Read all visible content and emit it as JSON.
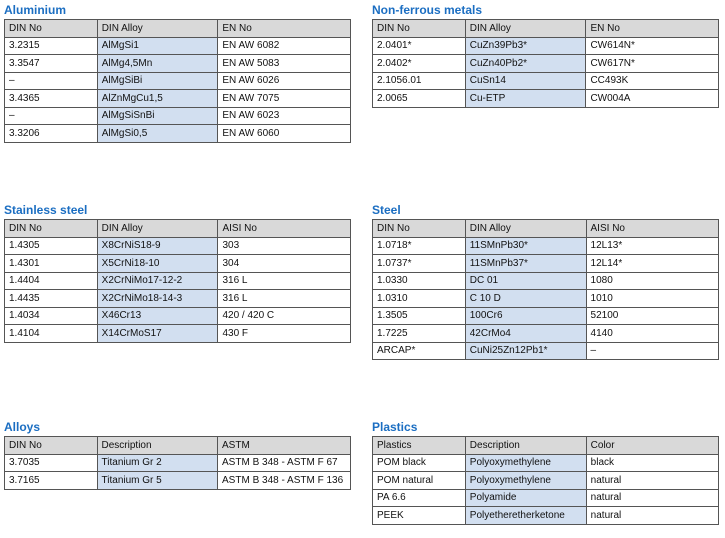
{
  "sections": [
    {
      "title": "Aluminium",
      "headers": [
        "DIN No",
        "DIN Alloy",
        "EN No"
      ],
      "rows": [
        [
          "3.2315",
          "AlMgSi1",
          "EN AW 6082"
        ],
        [
          "3.3547",
          "AlMg4,5Mn",
          "EN AW 5083"
        ],
        [
          "–",
          "AlMgSiBi",
          "EN AW 6026"
        ],
        [
          "3.4365",
          "AlZnMgCu1,5",
          "EN AW 7075"
        ],
        [
          "–",
          "AlMgSiSnBi",
          "EN AW 6023"
        ],
        [
          "3.3206",
          "AlMgSi0,5",
          "EN AW 6060"
        ]
      ]
    },
    {
      "title": "Non-ferrous metals",
      "headers": [
        "DIN No",
        "DIN Alloy",
        "EN No"
      ],
      "rows": [
        [
          "2.0401*",
          "CuZn39Pb3*",
          "CW614N*"
        ],
        [
          "2.0402*",
          "CuZn40Pb2*",
          "CW617N*"
        ],
        [
          "2.1056.01",
          "CuSn14",
          "CC493K"
        ],
        [
          "2.0065",
          "Cu-ETP",
          "CW004A"
        ]
      ]
    },
    {
      "title": "Stainless steel",
      "headers": [
        "DIN No",
        "DIN Alloy",
        "AISI No"
      ],
      "rows": [
        [
          "1.4305",
          "X8CrNiS18-9",
          "303"
        ],
        [
          "1.4301",
          "X5CrNi18-10",
          "304"
        ],
        [
          "1.4404",
          "X2CrNiMo17-12-2",
          " 316 L"
        ],
        [
          "1.4435",
          "X2CrNiMo18-14-3",
          " 316 L"
        ],
        [
          "1.4034",
          "X46Cr13",
          "420 / 420 C"
        ],
        [
          "1.4104",
          "X14CrMoS17",
          " 430 F"
        ]
      ]
    },
    {
      "title": "Steel",
      "headers": [
        "DIN No",
        "DIN Alloy",
        "AISI No"
      ],
      "rows": [
        [
          "1.0718*",
          "11SMnPb30*",
          "12L13*"
        ],
        [
          "1.0737*",
          "11SMnPb37*",
          "12L14*"
        ],
        [
          "1.0330",
          "DC 01",
          "1080"
        ],
        [
          "1.0310",
          "C 10 D",
          "1010"
        ],
        [
          "1.3505",
          "100Cr6",
          "52100"
        ],
        [
          "1.7225",
          "42CrMo4",
          "4140"
        ],
        [
          "ARCAP*",
          "CuNi25Zn12Pb1*",
          "–"
        ]
      ]
    },
    {
      "title": "Alloys",
      "headers": [
        "DIN No",
        "Description",
        "ASTM"
      ],
      "rows": [
        [
          "3.7035",
          "Titanium Gr 2",
          "ASTM B 348 - ASTM F 67"
        ],
        [
          "3.7165",
          "Titanium Gr 5",
          "ASTM B 348 - ASTM F 136"
        ]
      ]
    },
    {
      "title": "Plastics",
      "headers": [
        "Plastics",
        "Description",
        "Color"
      ],
      "rows": [
        [
          "POM black",
          "Polyoxymethylene",
          "black"
        ],
        [
          "POM natural",
          "Polyoxymethylene",
          "natural"
        ],
        [
          "PA 6.6",
          "Polyamide",
          "natural"
        ],
        [
          "PEEK",
          "Polyetheretherketone",
          "natural"
        ]
      ]
    }
  ]
}
